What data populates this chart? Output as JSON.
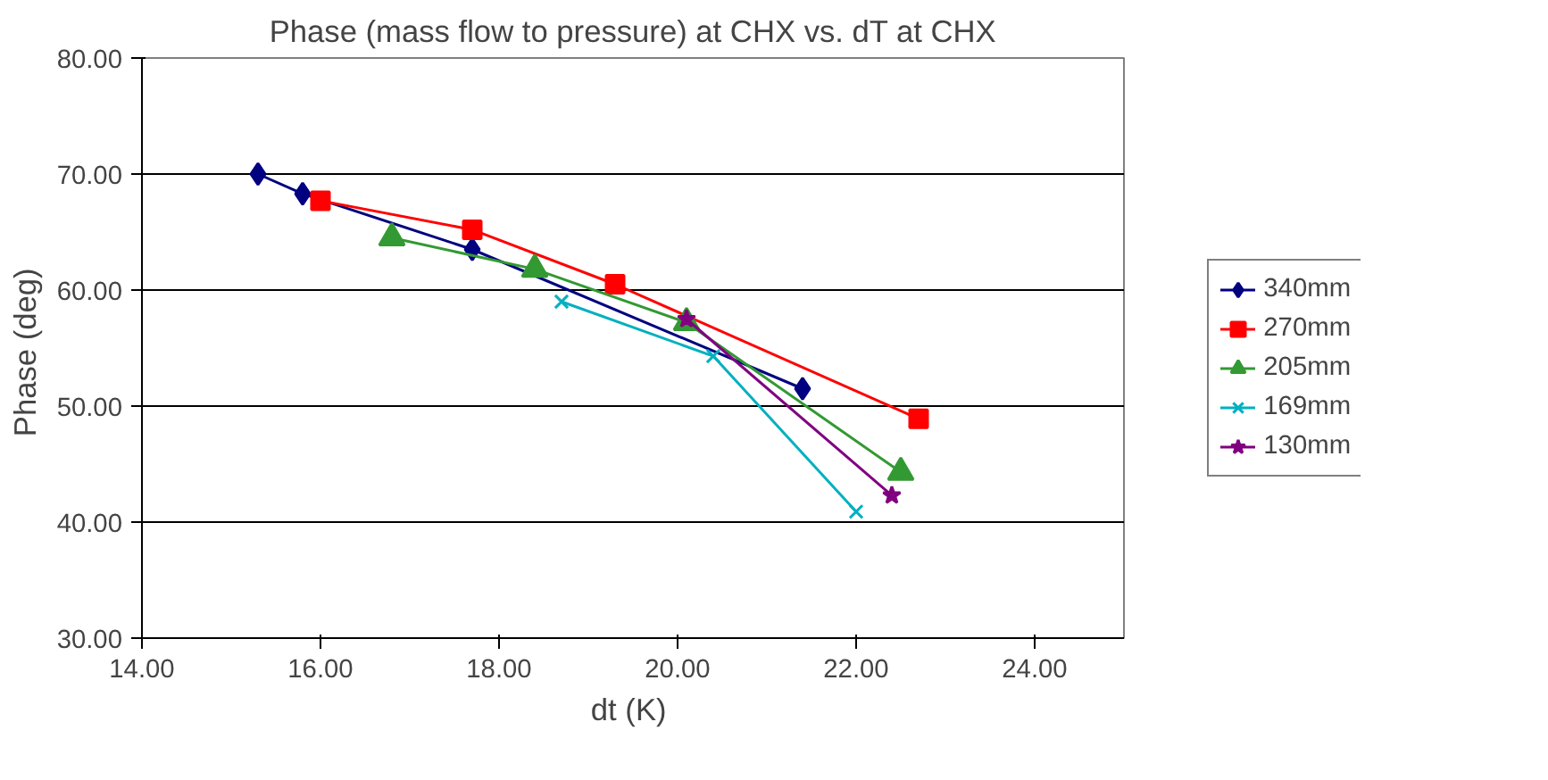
{
  "chart_data": {
    "type": "line",
    "title": "Phase (mass flow to pressure) at CHX vs. dT at CHX",
    "xlabel": "dt  (K)",
    "ylabel": "Phase  (deg)",
    "xlim": [
      14,
      25
    ],
    "ylim": [
      30,
      80
    ],
    "xticks": [
      {
        "value": 14,
        "label": "14.00"
      },
      {
        "value": 16,
        "label": "16.00"
      },
      {
        "value": 18,
        "label": "18.00"
      },
      {
        "value": 20,
        "label": "20.00"
      },
      {
        "value": 22,
        "label": "22.00"
      },
      {
        "value": 24,
        "label": "24.00"
      }
    ],
    "yticks": [
      {
        "value": 30,
        "label": "30.00"
      },
      {
        "value": 40,
        "label": "40.00"
      },
      {
        "value": 50,
        "label": "50.00"
      },
      {
        "value": 60,
        "label": "60.00"
      },
      {
        "value": 70,
        "label": "70.00"
      },
      {
        "value": 80,
        "label": "80.00"
      }
    ],
    "grid": "y",
    "legend": "right",
    "series": [
      {
        "name": "340mm",
        "color": "#000080",
        "marker": "diamond",
        "x": [
          15.3,
          15.8,
          17.7,
          21.4
        ],
        "values": [
          70.0,
          68.3,
          63.5,
          51.5
        ]
      },
      {
        "name": "270mm",
        "color": "#ff0000",
        "marker": "square",
        "x": [
          16.0,
          17.7,
          19.3,
          22.7
        ],
        "values": [
          67.7,
          65.2,
          60.5,
          48.9
        ]
      },
      {
        "name": "205mm",
        "color": "#339933",
        "marker": "triangle",
        "x": [
          16.8,
          18.4,
          20.1,
          22.5
        ],
        "values": [
          64.5,
          61.8,
          57.2,
          44.3
        ]
      },
      {
        "name": "169mm",
        "color": "#00b0c0",
        "marker": "cross",
        "x": [
          18.7,
          20.4,
          22.0
        ],
        "values": [
          59.0,
          54.3,
          40.9
        ]
      },
      {
        "name": "130mm",
        "color": "#800080",
        "marker": "star",
        "x": [
          20.1,
          22.4
        ],
        "values": [
          57.5,
          42.3
        ]
      }
    ]
  }
}
